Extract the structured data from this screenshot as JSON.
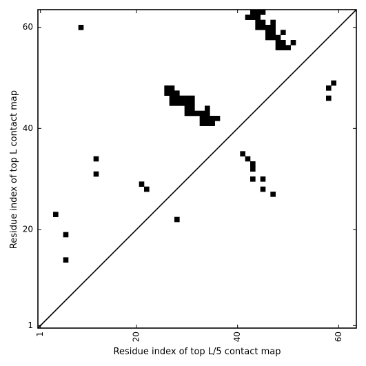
{
  "chart_data": {
    "type": "heatmap",
    "title": "",
    "xlabel": "Residue index of top L/5 contact map",
    "ylabel": "Residue index of top L contact map",
    "xlim": [
      0.5,
      63.5
    ],
    "ylim": [
      0.5,
      63.5
    ],
    "x_ticks": [
      1,
      20,
      40,
      60
    ],
    "y_ticks": [
      1,
      20,
      40,
      60
    ],
    "x_tick_labels": [
      "1",
      "20",
      "40",
      "60"
    ],
    "y_tick_labels": [
      "1",
      "20",
      "40",
      "60"
    ],
    "x_tick_rotation": -90,
    "diagonal_line": true,
    "grid": false,
    "cell_color": "#000000",
    "lower_triangle_cells": [
      [
        4,
        23
      ],
      [
        6,
        19
      ],
      [
        6,
        14
      ],
      [
        12,
        34
      ],
      [
        12,
        31
      ],
      [
        21,
        29
      ],
      [
        22,
        28
      ],
      [
        28,
        22
      ],
      [
        41,
        35
      ],
      [
        42,
        34
      ],
      [
        43,
        33
      ],
      [
        43,
        32
      ],
      [
        43,
        30
      ],
      [
        45,
        30
      ],
      [
        45,
        28
      ],
      [
        47,
        27
      ],
      [
        58,
        48
      ],
      [
        59,
        49
      ],
      [
        58,
        46
      ]
    ],
    "upper_triangle_cells": [
      [
        9,
        60
      ],
      [
        26,
        48
      ],
      [
        27,
        48
      ],
      [
        26,
        47
      ],
      [
        27,
        47
      ],
      [
        28,
        47
      ],
      [
        27,
        46
      ],
      [
        28,
        46
      ],
      [
        29,
        46
      ],
      [
        30,
        46
      ],
      [
        31,
        46
      ],
      [
        27,
        45
      ],
      [
        28,
        45
      ],
      [
        29,
        45
      ],
      [
        30,
        45
      ],
      [
        31,
        45
      ],
      [
        30,
        44
      ],
      [
        31,
        44
      ],
      [
        34,
        44
      ],
      [
        30,
        43
      ],
      [
        31,
        43
      ],
      [
        32,
        43
      ],
      [
        33,
        43
      ],
      [
        34,
        43
      ],
      [
        33,
        42
      ],
      [
        34,
        42
      ],
      [
        35,
        42
      ],
      [
        36,
        42
      ],
      [
        33,
        41
      ],
      [
        34,
        41
      ],
      [
        35,
        41
      ],
      [
        43,
        63
      ],
      [
        44,
        63
      ],
      [
        45,
        63
      ],
      [
        42,
        62
      ],
      [
        43,
        62
      ],
      [
        44,
        62
      ],
      [
        44,
        61
      ],
      [
        45,
        61
      ],
      [
        47,
        61
      ],
      [
        44,
        60
      ],
      [
        45,
        60
      ],
      [
        46,
        60
      ],
      [
        47,
        60
      ],
      [
        46,
        59
      ],
      [
        47,
        59
      ],
      [
        49,
        59
      ],
      [
        46,
        58
      ],
      [
        47,
        58
      ],
      [
        48,
        58
      ],
      [
        48,
        57
      ],
      [
        49,
        57
      ],
      [
        51,
        57
      ],
      [
        48,
        56
      ],
      [
        49,
        56
      ],
      [
        50,
        56
      ]
    ]
  }
}
